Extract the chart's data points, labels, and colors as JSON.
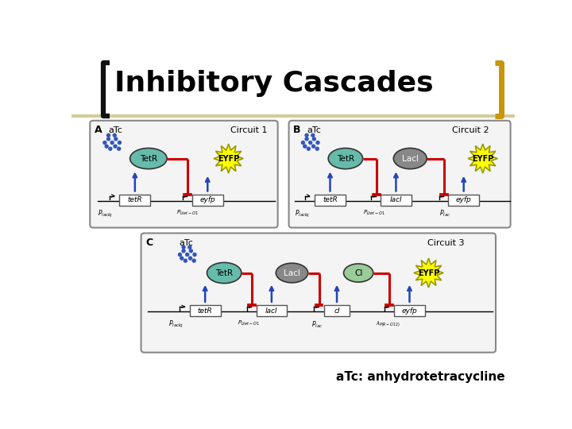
{
  "title": "Inhibitory Cascades",
  "footnote": "aTc: anhydrotetracycline",
  "title_fontsize": 26,
  "footnote_fontsize": 11,
  "bg_color": "#ffffff",
  "title_color": "#000000",
  "bracket_color_left": "#111111",
  "bracket_color_right": "#c8960a",
  "header_line_color": "#d4cc9a",
  "label_A": "A",
  "label_B": "B",
  "label_C": "C",
  "circuit1_label": "Circuit 1",
  "circuit2_label": "Circuit 2",
  "circuit3_label": "Circuit 3",
  "atc_label": "aTc",
  "tetr_label": "TetR",
  "laci_label": "LacI",
  "ci_label": "CI",
  "eyfp_label": "EYFP",
  "gene_tetr": "tetR",
  "gene_laci": "lacI",
  "gene_ci": "cI",
  "gene_eyfp": "eyfp",
  "red_color": "#cc0000",
  "blue_color": "#2244bb",
  "tetr_fill": "#66bbaa",
  "laci_fill": "#888888",
  "ci_fill": "#99cc99",
  "eyfp_fill": "#ffff00",
  "dot_color": "#3355bb",
  "gene_box_color": "#ffffff",
  "circuit_box_color": "#f4f4f4",
  "circuit_box_edge": "#888888"
}
